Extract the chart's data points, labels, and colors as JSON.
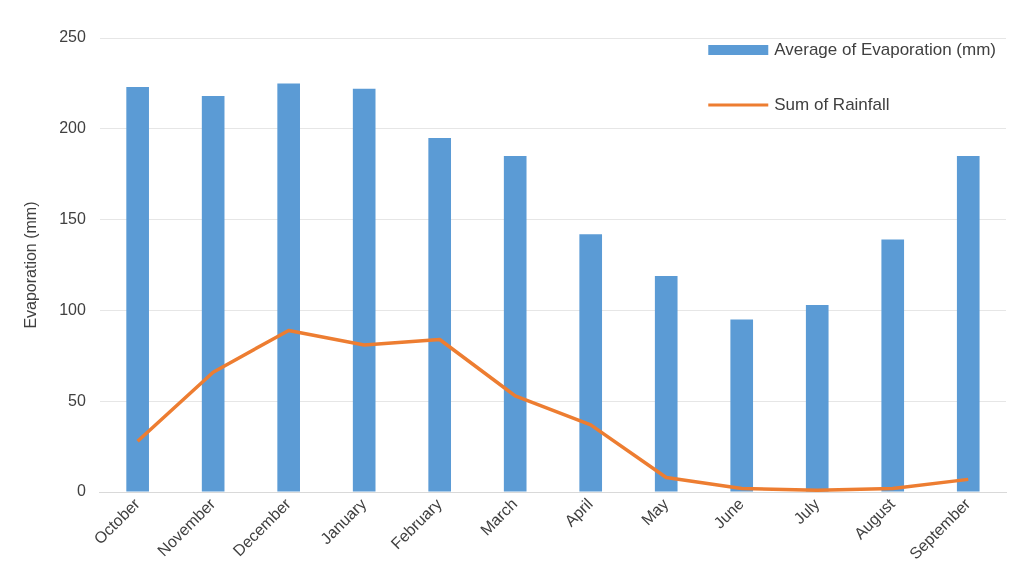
{
  "chart_data": {
    "type": "bar",
    "ylabel": "Evaporation (mm)",
    "categories": [
      "October",
      "November",
      "December",
      "January",
      "February",
      "March",
      "April",
      "May",
      "June",
      "July",
      "August",
      "September"
    ],
    "series": [
      {
        "name": "Average of Evaporation (mm)",
        "color": "#5b9bd5",
        "values": [
          223,
          218,
          225,
          222,
          195,
          185,
          142,
          119,
          95,
          103,
          139,
          185
        ]
      },
      {
        "name": "Sum of Rainfall",
        "type": "line",
        "color": "#ed7d31",
        "values": [
          28,
          66,
          89,
          81,
          84,
          53,
          37,
          8,
          2,
          1,
          2,
          7
        ]
      }
    ],
    "ylim": [
      0,
      250
    ],
    "yticks": [
      0,
      50,
      100,
      150,
      200,
      250
    ],
    "grid": "y",
    "legend": "top right",
    "marker": "none"
  }
}
